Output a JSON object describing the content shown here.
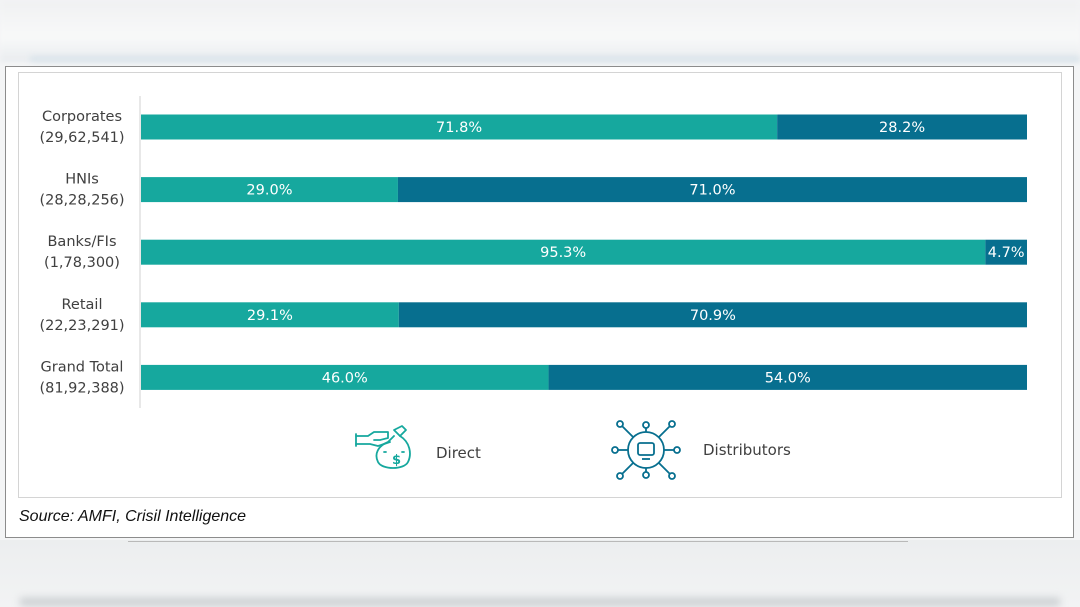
{
  "source_text": "Source: AMFI, Crisil Intelligence",
  "colors": {
    "direct": "#16a89e",
    "distributors": "#076f8f",
    "axis": "#d0d0d0",
    "label": "#404040"
  },
  "legend": [
    {
      "name": "Direct",
      "icon": "money-bag-hand-icon"
    },
    {
      "name": "Distributors",
      "icon": "network-hub-icon"
    }
  ],
  "chart_data": {
    "type": "bar",
    "orientation": "horizontal",
    "stacked": "100%",
    "categories": [
      {
        "name": "Corporates",
        "count": "(29,62,541)"
      },
      {
        "name": "HNIs",
        "count": "(28,28,256)"
      },
      {
        "name": "Banks/FIs",
        "count": "(1,78,300)"
      },
      {
        "name": "Retail",
        "count": "(22,23,291)"
      },
      {
        "name": "Grand Total",
        "count": "(81,92,388)"
      }
    ],
    "series": [
      {
        "name": "Direct",
        "values": [
          71.8,
          29.0,
          95.3,
          29.1,
          46.0
        ],
        "labels": [
          "71.8%",
          "29.0%",
          "95.3%",
          "29.1%",
          "46.0%"
        ]
      },
      {
        "name": "Distributors",
        "values": [
          28.2,
          71.0,
          4.7,
          70.9,
          54.0
        ],
        "labels": [
          "28.2%",
          "71.0%",
          "4.7%",
          "70.9%",
          "54.0%"
        ]
      }
    ],
    "xlim": [
      0,
      100
    ],
    "grid": false,
    "legend_position": "bottom"
  }
}
